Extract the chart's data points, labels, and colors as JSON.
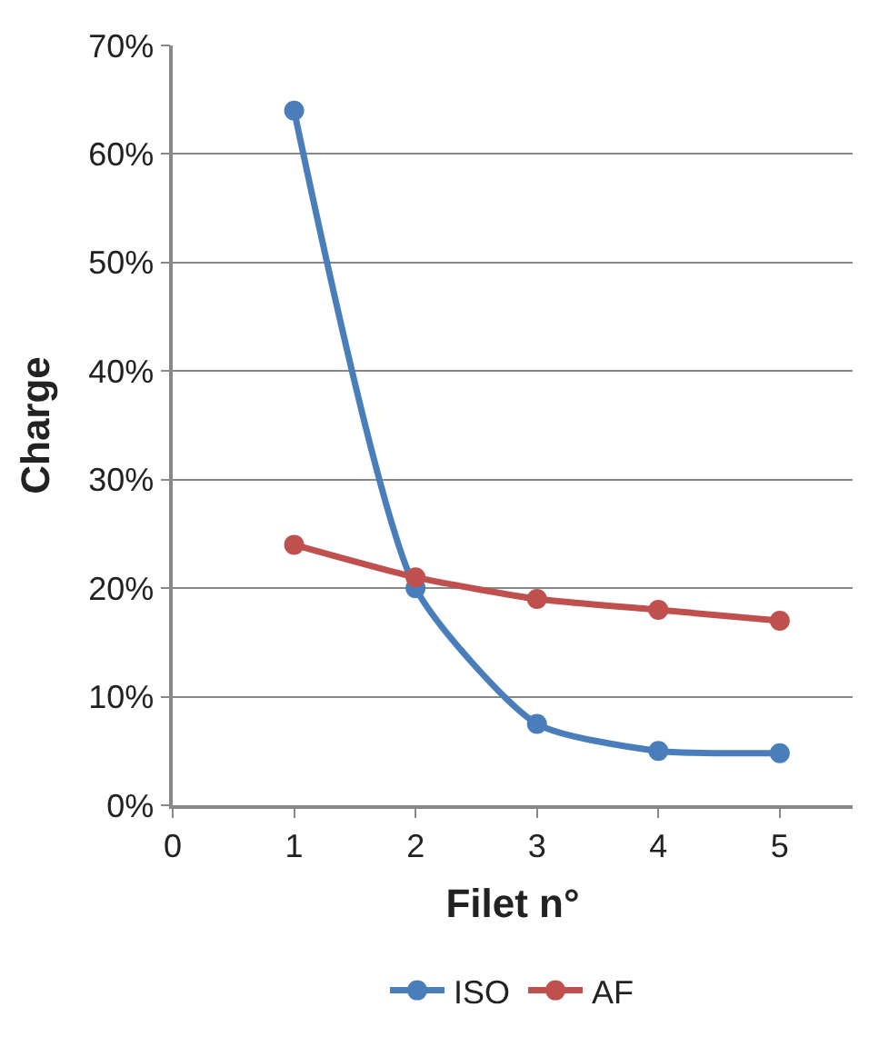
{
  "chart_data": {
    "type": "line",
    "xlabel": "Filet n°",
    "ylabel": "Charge",
    "x": [
      1,
      2,
      3,
      4,
      5
    ],
    "series": [
      {
        "name": "ISO",
        "color": "#4a7ebb",
        "values": [
          64,
          20,
          7.5,
          5,
          4.8
        ]
      },
      {
        "name": "AF",
        "color": "#c0504d",
        "values": [
          24,
          21,
          19,
          18,
          17
        ]
      }
    ],
    "xlim": [
      0,
      5.6
    ],
    "xticks": [
      0,
      1,
      2,
      3,
      4,
      5
    ],
    "ylim": [
      0,
      70
    ],
    "yticks": [
      {
        "value": 0,
        "label": "0%"
      },
      {
        "value": 10,
        "label": "10%"
      },
      {
        "value": 20,
        "label": "20%"
      },
      {
        "value": 30,
        "label": "30%"
      },
      {
        "value": 40,
        "label": "40%"
      },
      {
        "value": 50,
        "label": "50%"
      },
      {
        "value": 60,
        "label": "60%"
      },
      {
        "value": 70,
        "label": "70%"
      }
    ],
    "grid": "y",
    "legend": "bottom",
    "marker": "circle",
    "line_style": "solid"
  }
}
